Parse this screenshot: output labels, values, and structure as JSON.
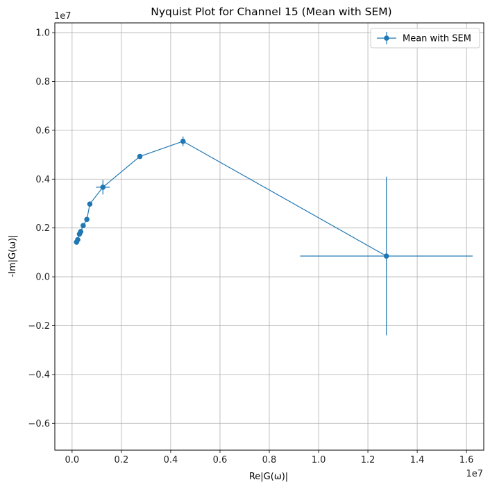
{
  "chart_data": {
    "type": "scatter",
    "title": "Nyquist Plot for Channel 15 (Mean with SEM)",
    "xlabel": "Re|G(ω)|",
    "ylabel": "-Im|G(ω)|",
    "x_offset_text": "1e7",
    "y_offset_text": "1e7",
    "xlim": [
      -0.07,
      1.67
    ],
    "ylim": [
      -0.71,
      1.04
    ],
    "xticks": [
      0.0,
      0.2,
      0.4,
      0.6,
      0.8,
      1.0,
      1.2,
      1.4,
      1.6
    ],
    "xtick_labels": [
      "0.0",
      "0.2",
      "0.4",
      "0.6",
      "0.8",
      "1.0",
      "1.2",
      "1.4",
      "1.6"
    ],
    "yticks": [
      -0.6,
      -0.4,
      -0.2,
      0.0,
      0.2,
      0.4,
      0.6,
      0.8,
      1.0
    ],
    "ytick_labels": [
      "−0.6",
      "−0.4",
      "−0.2",
      "0.0",
      "0.2",
      "0.4",
      "0.6",
      "0.8",
      "1.0"
    ],
    "grid": true,
    "legend_position": "upper right",
    "series": [
      {
        "name": "Mean with SEM",
        "color": "#1f77b4",
        "points": [
          {
            "x": 0.018,
            "y": 0.142,
            "xerr": 0.0,
            "yerr": 0.0
          },
          {
            "x": 0.023,
            "y": 0.152,
            "xerr": 0.0,
            "yerr": 0.0
          },
          {
            "x": 0.03,
            "y": 0.175,
            "xerr": 0.0,
            "yerr": 0.0
          },
          {
            "x": 0.035,
            "y": 0.185,
            "xerr": 0.0,
            "yerr": 0.0
          },
          {
            "x": 0.045,
            "y": 0.21,
            "xerr": 0.0,
            "yerr": 0.0
          },
          {
            "x": 0.06,
            "y": 0.235,
            "xerr": 0.0,
            "yerr": 0.0
          },
          {
            "x": 0.072,
            "y": 0.298,
            "xerr": 0.0,
            "yerr": 0.0
          },
          {
            "x": 0.125,
            "y": 0.367,
            "xerr": 0.028,
            "yerr": 0.03
          },
          {
            "x": 0.275,
            "y": 0.493,
            "xerr": 0.0,
            "yerr": 0.0
          },
          {
            "x": 0.45,
            "y": 0.555,
            "xerr": 0.0,
            "yerr": 0.02
          },
          {
            "x": 1.275,
            "y": 0.085,
            "xerr": 0.35,
            "yerr": 0.325
          }
        ]
      }
    ]
  }
}
